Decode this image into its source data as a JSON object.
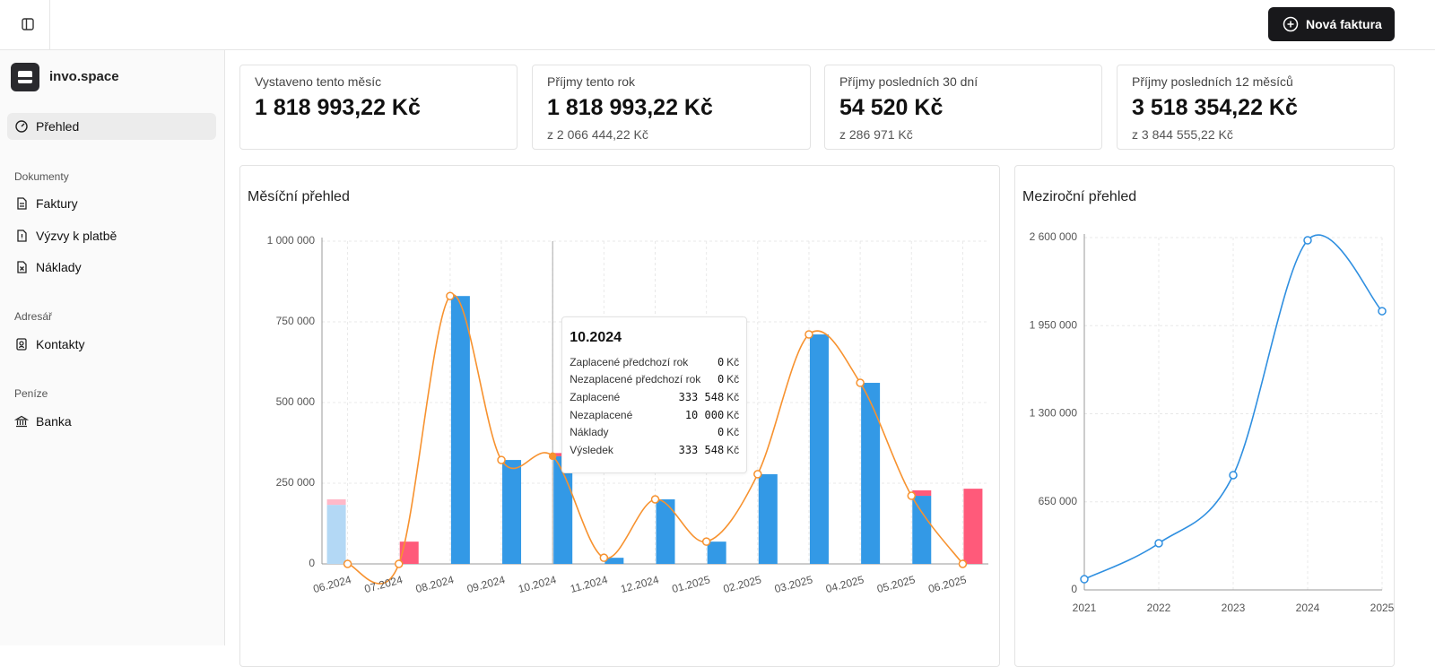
{
  "header": {
    "button": "Nová faktura"
  },
  "sidebar": {
    "brand": "invo.space",
    "active": "Přehled",
    "sections": [
      {
        "title": "Dokumenty",
        "items": [
          "Faktury",
          "Výzvy k platbě",
          "Náklady"
        ]
      },
      {
        "title": "Adresář",
        "items": [
          "Kontakty"
        ]
      },
      {
        "title": "Peníze",
        "items": [
          "Banka"
        ]
      }
    ]
  },
  "stats": [
    {
      "label": "Vystaveno tento měsíc",
      "value": "1 818 993,22 Kč"
    },
    {
      "label": "Příjmy tento rok",
      "value": "1 818 993,22 Kč",
      "sub": "z 2 066 444,22 Kč"
    },
    {
      "label": "Příjmy posledních 30 dní",
      "value": "54 520 Kč",
      "sub": "z 286 971 Kč"
    },
    {
      "label": "Příjmy posledních 12 měsíců",
      "value": "3 518 354,22 Kč",
      "sub": "z 3 844 555,22 Kč"
    }
  ],
  "chart_data": [
    {
      "type": "bar",
      "title": "Měsíční přehled",
      "categories": [
        "06.2024",
        "07.2024",
        "08.2024",
        "09.2024",
        "10.2024",
        "11.2024",
        "12.2024",
        "01.2025",
        "02.2025",
        "03.2025",
        "04.2025",
        "05.2025",
        "06.2025"
      ],
      "series": [
        {
          "name": "Zaplacené předchozí rok",
          "type": "bar",
          "position": "left",
          "color": "#b3d8f5",
          "values": [
            183000,
            0,
            0,
            0,
            0,
            0,
            0,
            0,
            0,
            0,
            0,
            0,
            0
          ]
        },
        {
          "name": "Nezaplacené předchozí rok",
          "type": "bar",
          "position": "left",
          "color": "#ffb8c8",
          "values": [
            17000,
            0,
            0,
            0,
            0,
            0,
            0,
            0,
            0,
            0,
            0,
            0,
            0
          ]
        },
        {
          "name": "Zaplacené",
          "type": "bar",
          "position": "right",
          "color": "#3399e6",
          "values": [
            0,
            0,
            830000,
            322000,
            333548,
            19000,
            200000,
            69000,
            278000,
            711000,
            561000,
            211000,
            0
          ]
        },
        {
          "name": "Nezaplacené",
          "type": "bar",
          "position": "right",
          "color": "#ff5a7a",
          "values": [
            0,
            69000,
            0,
            0,
            10000,
            0,
            0,
            0,
            0,
            0,
            0,
            17000,
            233000
          ]
        },
        {
          "name": "Náklady",
          "type": "bar",
          "position": "right",
          "color": "#9ca3af",
          "values": [
            0,
            0,
            0,
            0,
            0,
            0,
            0,
            0,
            0,
            0,
            0,
            0,
            0
          ]
        },
        {
          "name": "Výsledek",
          "type": "line",
          "color": "#f7922f",
          "values": [
            0,
            0,
            830000,
            322000,
            333548,
            19000,
            200000,
            69000,
            278000,
            711000,
            561000,
            211000,
            0
          ]
        }
      ],
      "ylim": [
        0,
        1000000
      ],
      "yticks": [
        0,
        {
          "value": 250000,
          "label": "250 000"
        },
        {
          "value": 500000,
          "label": "500 000"
        },
        {
          "value": 750000,
          "label": "750 000"
        },
        {
          "value": 1000000,
          "label": "1 000 000"
        }
      ],
      "grid": true,
      "tooltip": {
        "title": "10.2024",
        "value_labels": [
          "0",
          "0",
          "333 548",
          "10 000",
          "0",
          "333 548"
        ],
        "unit": "Kč"
      }
    },
    {
      "type": "line",
      "title": "Meziroční přehled",
      "categories": [
        "2021",
        "2022",
        "2023",
        "2024",
        "2025"
      ],
      "values": [
        79000,
        344000,
        847000,
        2580000,
        2057000
      ],
      "color": "#2f8fe0",
      "ylim": [
        0,
        2600000
      ],
      "yticks": [
        0,
        {
          "value": 650000,
          "label": "650 000"
        },
        {
          "value": 1300000,
          "label": "1 300 000"
        },
        {
          "value": 1950000,
          "label": "1 950 000"
        },
        {
          "value": 2600000,
          "label": "2 600 000"
        }
      ],
      "grid": true
    }
  ]
}
